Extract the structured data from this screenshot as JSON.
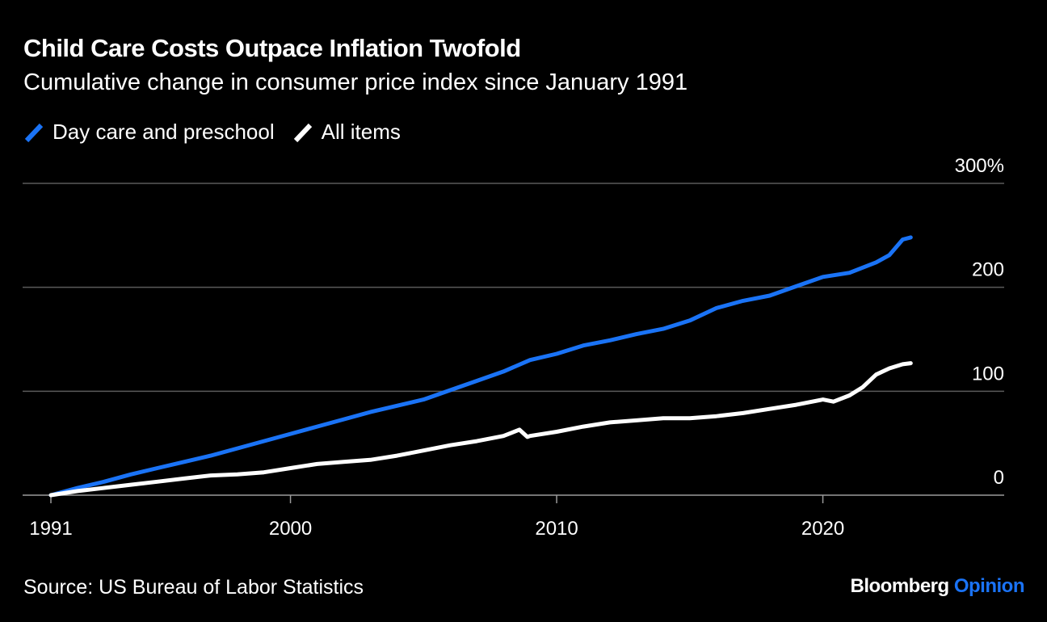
{
  "header": {
    "title": "Child Care Costs Outpace Inflation Twofold",
    "subtitle": "Cumulative change in consumer price index since January 1991"
  },
  "footer": {
    "source": "Source: US Bureau of Labor Statistics",
    "brand_primary": "Bloomberg",
    "brand_secondary": "Opinion"
  },
  "colors": {
    "background": "#000000",
    "day_care": "#1a73f6",
    "all_items": "#ffffff",
    "grid": "#5a5a5a"
  },
  "chart_data": {
    "type": "line",
    "title": "Child Care Costs Outpace Inflation Twofold",
    "subtitle": "Cumulative change in consumer price index since January 1991",
    "x_ticks": [
      1991,
      2000,
      2010,
      2020
    ],
    "x_tick_labels": [
      "1991",
      "2000",
      "2010",
      "2020"
    ],
    "xlim": [
      1991,
      2026.5
    ],
    "y_ticks": [
      0,
      100,
      200,
      300
    ],
    "y_tick_labels": [
      "0",
      "100",
      "200",
      "300%"
    ],
    "ylim": [
      0,
      300
    ],
    "grid": true,
    "legend_position": "top-left",
    "series": [
      {
        "name": "Day care and preschool",
        "color": "#1a73f6",
        "x": [
          1991,
          1992,
          1993,
          1994,
          1995,
          1996,
          1997,
          1998,
          1999,
          2000,
          2001,
          2002,
          2003,
          2004,
          2005,
          2006,
          2007,
          2008,
          2009,
          2010,
          2011,
          2012,
          2013,
          2014,
          2015,
          2016,
          2017,
          2018,
          2019,
          2020,
          2021,
          2022,
          2022.5,
          2023,
          2023.3
        ],
        "values": [
          0,
          7,
          13,
          20,
          26,
          32,
          38,
          45,
          52,
          59,
          66,
          73,
          80,
          86,
          92,
          101,
          110,
          119,
          130,
          136,
          144,
          149,
          155,
          160,
          168,
          180,
          187,
          192,
          201,
          210,
          214,
          224,
          231,
          246,
          248
        ]
      },
      {
        "name": "All items",
        "color": "#ffffff",
        "x": [
          1991,
          1992,
          1993,
          1994,
          1995,
          1996,
          1997,
          1998,
          1999,
          2000,
          2001,
          2002,
          2003,
          2004,
          2005,
          2006,
          2007,
          2008,
          2008.6,
          2008.9,
          2009,
          2010,
          2011,
          2012,
          2013,
          2014,
          2015,
          2016,
          2017,
          2018,
          2019,
          2020,
          2020.4,
          2021,
          2021.5,
          2022,
          2022.5,
          2023,
          2023.3
        ],
        "values": [
          0,
          4,
          7,
          10,
          13,
          16,
          19,
          20,
          22,
          26,
          30,
          32,
          34,
          38,
          43,
          48,
          52,
          57,
          63,
          56,
          57,
          61,
          66,
          70,
          72,
          74,
          74,
          76,
          79,
          83,
          87,
          92,
          90,
          96,
          104,
          116,
          122,
          126,
          127
        ]
      }
    ]
  }
}
